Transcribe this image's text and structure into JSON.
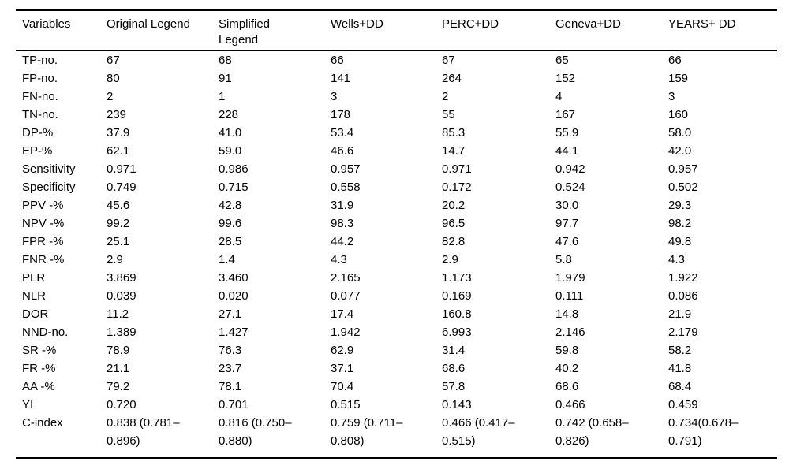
{
  "colors": {
    "background": "#ffffff",
    "text": "#000000",
    "rule": "#000000"
  },
  "table": {
    "columns": [
      "Variables",
      "Original Legend",
      "Simplified Legend",
      "Wells+DD",
      "PERC+DD",
      "Geneva+DD",
      "YEARS+ DD"
    ],
    "rows": [
      {
        "label": "TP-no.",
        "values": [
          "67",
          "68",
          "66",
          "67",
          "65",
          "66"
        ]
      },
      {
        "label": "FP-no.",
        "values": [
          "80",
          "91",
          "141",
          "264",
          "152",
          "159"
        ]
      },
      {
        "label": "FN-no.",
        "values": [
          "2",
          "1",
          "3",
          "2",
          "4",
          "3"
        ]
      },
      {
        "label": "TN-no.",
        "values": [
          "239",
          "228",
          "178",
          "55",
          "167",
          "160"
        ]
      },
      {
        "label": "DP-%",
        "values": [
          "37.9",
          "41.0",
          "53.4",
          "85.3",
          "55.9",
          "58.0"
        ]
      },
      {
        "label": "EP-%",
        "values": [
          "62.1",
          "59.0",
          "46.6",
          "14.7",
          "44.1",
          "42.0"
        ]
      },
      {
        "label": "Sensitivity",
        "values": [
          "0.971",
          "0.986",
          "0.957",
          "0.971",
          "0.942",
          "0.957"
        ]
      },
      {
        "label": "Specificity",
        "values": [
          "0.749",
          "0.715",
          "0.558",
          "0.172",
          "0.524",
          "0.502"
        ]
      },
      {
        "label": "PPV -%",
        "values": [
          "45.6",
          "42.8",
          "31.9",
          "20.2",
          "30.0",
          "29.3"
        ]
      },
      {
        "label": "NPV -%",
        "values": [
          "99.2",
          "99.6",
          "98.3",
          "96.5",
          "97.7",
          "98.2"
        ]
      },
      {
        "label": "FPR -%",
        "values": [
          "25.1",
          "28.5",
          "44.2",
          "82.8",
          "47.6",
          "49.8"
        ]
      },
      {
        "label": "FNR -%",
        "values": [
          "2.9",
          "1.4",
          "4.3",
          "2.9",
          "5.8",
          "4.3"
        ]
      },
      {
        "label": "PLR",
        "values": [
          "3.869",
          "3.460",
          "2.165",
          "1.173",
          "1.979",
          "1.922"
        ]
      },
      {
        "label": "NLR",
        "values": [
          "0.039",
          "0.020",
          "0.077",
          "0.169",
          "0.111",
          "0.086"
        ]
      },
      {
        "label": "DOR",
        "values": [
          "11.2",
          "27.1",
          "17.4",
          "160.8",
          "14.8",
          "21.9"
        ]
      },
      {
        "label": "NND-no.",
        "values": [
          "1.389",
          "1.427",
          "1.942",
          "6.993",
          "2.146",
          "2.179"
        ]
      },
      {
        "label": "SR -%",
        "values": [
          "78.9",
          "76.3",
          "62.9",
          "31.4",
          "59.8",
          "58.2"
        ]
      },
      {
        "label": "FR -%",
        "values": [
          "21.1",
          "23.7",
          "37.1",
          "68.6",
          "40.2",
          "41.8"
        ]
      },
      {
        "label": "AA -%",
        "values": [
          "79.2",
          "78.1",
          "70.4",
          "57.8",
          "68.6",
          "68.4"
        ]
      },
      {
        "label": "YI",
        "values": [
          "0.720",
          "0.701",
          "0.515",
          "0.143",
          "0.466",
          "0.459"
        ]
      },
      {
        "label": "C-index",
        "values": [
          "0.838 (0.781–0.896)",
          "0.816 (0.750–0.880)",
          "0.759 (0.711–0.808)",
          "0.466 (0.417–0.515)",
          "0.742 (0.658–0.826)",
          "0.734(0.678–0.791)"
        ]
      }
    ]
  }
}
